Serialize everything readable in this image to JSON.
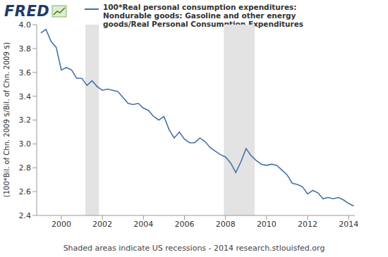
{
  "chart_data": {
    "type": "line",
    "logo": "FRED",
    "ylabel": "(100*Bil. of Chn. 2009 $/Bil. of Chn. 2009 $)",
    "footer": "Shaded areas indicate US recessions - 2014 research.stlouisfed.org",
    "x": [
      1999.0,
      1999.25,
      1999.5,
      1999.75,
      2000.0,
      2000.25,
      2000.5,
      2000.75,
      2001.0,
      2001.25,
      2001.5,
      2001.75,
      2002.0,
      2002.25,
      2002.5,
      2002.75,
      2003.0,
      2003.25,
      2003.5,
      2003.75,
      2004.0,
      2004.25,
      2004.5,
      2004.75,
      2005.0,
      2005.25,
      2005.5,
      2005.75,
      2006.0,
      2006.25,
      2006.5,
      2006.75,
      2007.0,
      2007.25,
      2007.5,
      2007.75,
      2008.0,
      2008.25,
      2008.5,
      2008.75,
      2009.0,
      2009.25,
      2009.5,
      2009.75,
      2010.0,
      2010.25,
      2010.5,
      2010.75,
      2011.0,
      2011.25,
      2011.5,
      2011.75,
      2012.0,
      2012.25,
      2012.5,
      2012.75,
      2013.0,
      2013.25,
      2013.5,
      2013.75,
      2014.0,
      2014.25
    ],
    "series": [
      {
        "name": "100*Real personal consumption expenditures: Nondurable goods: Gasoline and other energy goods/Real Personal Consumption Expenditures",
        "color": "#4572a7",
        "values": [
          3.93,
          3.96,
          3.86,
          3.81,
          3.62,
          3.64,
          3.62,
          3.55,
          3.55,
          3.49,
          3.53,
          3.48,
          3.45,
          3.46,
          3.45,
          3.44,
          3.39,
          3.34,
          3.33,
          3.34,
          3.3,
          3.28,
          3.23,
          3.2,
          3.23,
          3.12,
          3.05,
          3.1,
          3.04,
          3.01,
          3.01,
          3.05,
          3.02,
          2.97,
          2.94,
          2.91,
          2.89,
          2.84,
          2.76,
          2.85,
          2.96,
          2.9,
          2.86,
          2.83,
          2.82,
          2.83,
          2.82,
          2.78,
          2.74,
          2.67,
          2.66,
          2.64,
          2.58,
          2.61,
          2.59,
          2.54,
          2.55,
          2.54,
          2.55,
          2.53,
          2.5,
          2.48
        ]
      }
    ],
    "recessions": [
      [
        2001.17,
        2001.83
      ],
      [
        2007.92,
        2009.42
      ]
    ],
    "xlim": [
      1998.8,
      2014.3
    ],
    "xticks": [
      2000,
      2002,
      2004,
      2006,
      2008,
      2010,
      2012,
      2014
    ],
    "ylim": [
      2.4,
      4.0
    ],
    "yticks": [
      2.4,
      2.6,
      2.8,
      {
        "value": 3,
        "label": "3.0"
      },
      3.2,
      3.4,
      3.6,
      3.8,
      {
        "value": 4,
        "label": "4.0"
      }
    ],
    "grid": false
  }
}
